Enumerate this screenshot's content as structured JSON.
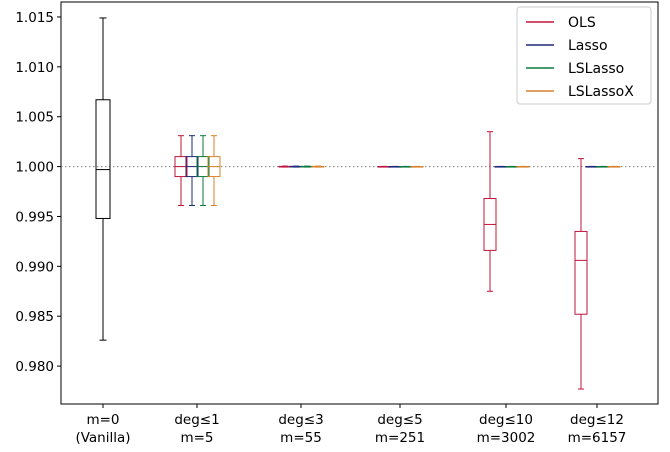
{
  "chart_data": {
    "type": "box",
    "title": "",
    "xlabel": "",
    "ylabel": "",
    "ylim": [
      0.9762,
      1.0165
    ],
    "yticks": [
      "1.015",
      "1.010",
      "1.005",
      "1.000",
      "0.995",
      "0.990",
      "0.985",
      "0.980"
    ],
    "reference_line": {
      "y": 1.0,
      "style": "dotted",
      "color": "#808080"
    },
    "grid": false,
    "legend_position": "top-right",
    "categories": [
      {
        "line1": "m=0",
        "line2": "(Vanilla)"
      },
      {
        "line1": "deg≤1",
        "line2": "m=5"
      },
      {
        "line1": "deg≤3",
        "line2": "m=55"
      },
      {
        "line1": "deg≤5",
        "line2": "m=251"
      },
      {
        "line1": "deg≤10",
        "line2": "m=3002"
      },
      {
        "line1": "deg≤12",
        "line2": "m=6157"
      }
    ],
    "series": [
      {
        "name": "OLS",
        "color": "#c0143c",
        "boxes": [
          null,
          {
            "whislo": 0.9961,
            "q1": 0.999,
            "med": 1.0,
            "q3": 1.001,
            "whishi": 1.0031
          },
          {
            "whislo": 0.99995,
            "q1": 0.99998,
            "med": 1.0,
            "q3": 1.00002,
            "whishi": 1.00005
          },
          {
            "whislo": 0.99998,
            "q1": 0.99999,
            "med": 1.0,
            "q3": 1.00001,
            "whishi": 1.00002
          },
          {
            "whislo": 0.9875,
            "q1": 0.9916,
            "med": 0.9942,
            "q3": 0.9968,
            "whishi": 1.0035
          },
          {
            "whislo": 0.9777,
            "q1": 0.9852,
            "med": 0.9906,
            "q3": 0.9935,
            "whishi": 1.0008
          }
        ]
      },
      {
        "name": "Lasso",
        "color": "#1f2a7a",
        "boxes": [
          null,
          {
            "whislo": 0.9961,
            "q1": 0.999,
            "med": 1.0,
            "q3": 1.001,
            "whishi": 1.0031
          },
          {
            "whislo": 0.99995,
            "q1": 0.99998,
            "med": 1.0,
            "q3": 1.00002,
            "whishi": 1.00005
          },
          {
            "whislo": 0.99998,
            "q1": 0.99999,
            "med": 1.0,
            "q3": 1.00001,
            "whishi": 1.00002
          },
          {
            "whislo": 0.99998,
            "q1": 0.99999,
            "med": 1.0,
            "q3": 1.00001,
            "whishi": 1.00002
          },
          {
            "whislo": 0.99998,
            "q1": 0.99999,
            "med": 1.0,
            "q3": 1.00001,
            "whishi": 1.00002
          }
        ]
      },
      {
        "name": "LSLasso",
        "color": "#0b7a3e",
        "boxes": [
          null,
          {
            "whislo": 0.9961,
            "q1": 0.999,
            "med": 1.0,
            "q3": 1.001,
            "whishi": 1.0031
          },
          {
            "whislo": 0.99995,
            "q1": 0.99998,
            "med": 1.0,
            "q3": 1.00002,
            "whishi": 1.00005
          },
          {
            "whislo": 0.99998,
            "q1": 0.99999,
            "med": 1.0,
            "q3": 1.00001,
            "whishi": 1.00002
          },
          {
            "whislo": 0.99998,
            "q1": 0.99999,
            "med": 1.0,
            "q3": 1.00001,
            "whishi": 1.00002
          },
          {
            "whislo": 0.99998,
            "q1": 0.99999,
            "med": 1.0,
            "q3": 1.00001,
            "whishi": 1.00002
          }
        ]
      },
      {
        "name": "LSLassoX",
        "color": "#d9822b",
        "boxes": [
          null,
          {
            "whislo": 0.9961,
            "q1": 0.999,
            "med": 1.0,
            "q3": 1.001,
            "whishi": 1.0031
          },
          {
            "whislo": 0.99995,
            "q1": 0.99998,
            "med": 1.0,
            "q3": 1.00002,
            "whishi": 1.00005
          },
          {
            "whislo": 0.99998,
            "q1": 0.99999,
            "med": 1.0,
            "q3": 1.00001,
            "whishi": 1.00002
          },
          {
            "whislo": 0.99998,
            "q1": 0.99999,
            "med": 1.0,
            "q3": 1.00001,
            "whishi": 1.00002
          },
          {
            "whislo": 0.99998,
            "q1": 0.99999,
            "med": 1.0,
            "q3": 1.00001,
            "whishi": 1.00002
          }
        ]
      }
    ],
    "vanilla_box": {
      "color": "#000000",
      "whislo": 0.9826,
      "q1": 0.9948,
      "med": 0.9997,
      "q3": 1.0067,
      "whishi": 1.0149
    }
  }
}
